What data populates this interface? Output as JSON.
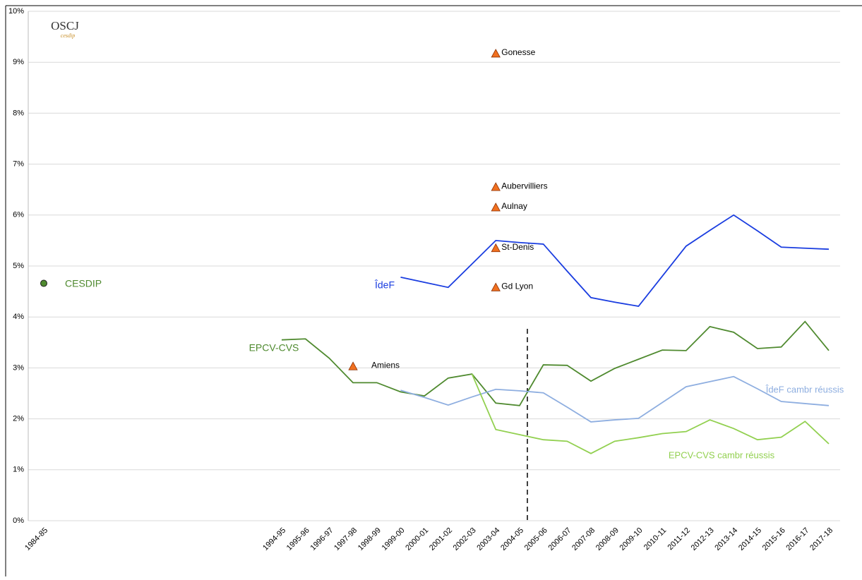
{
  "logo": {
    "title": "OSCJ",
    "subtitle": "cesdip"
  },
  "chart_data": {
    "type": "line",
    "categories": [
      "1984-85",
      null,
      null,
      null,
      null,
      null,
      null,
      null,
      null,
      null,
      "1994-95",
      "1995-96",
      "1996-97",
      "1997-98",
      "1998-99",
      "1999-00",
      "2000-01",
      "2001-02",
      "2002-03",
      "2003-04",
      "2004-05",
      "2005-06",
      "2006-07",
      "2007-08",
      "2008-09",
      "2009-10",
      "2010-11",
      "2011-12",
      "2012-13",
      "2013-14",
      "2014-15",
      "2015-16",
      "2016-17",
      "2017-18"
    ],
    "series": [
      {
        "name": "ÎdeF",
        "color": "#1a3de0",
        "values": [
          null,
          null,
          null,
          null,
          null,
          null,
          null,
          null,
          null,
          null,
          null,
          null,
          null,
          null,
          null,
          4.78,
          4.68,
          4.58,
          5.04,
          5.5,
          5.46,
          5.43,
          4.9,
          4.38,
          4.29,
          4.21,
          4.8,
          5.39,
          5.7,
          6.0,
          5.69,
          5.37,
          5.35,
          5.33
        ]
      },
      {
        "name": "EPCV-CVS",
        "color": "#4f8a2f",
        "values": [
          null,
          null,
          null,
          null,
          null,
          null,
          null,
          null,
          null,
          null,
          3.55,
          3.57,
          3.19,
          2.71,
          2.71,
          2.53,
          2.45,
          2.8,
          2.88,
          2.31,
          2.26,
          3.06,
          3.05,
          2.74,
          2.99,
          3.17,
          3.35,
          3.34,
          3.81,
          3.7,
          3.38,
          3.41,
          3.91,
          3.34
        ]
      },
      {
        "name": "ÎdeF cambr réussis",
        "color": "#8eaee0",
        "values": [
          null,
          null,
          null,
          null,
          null,
          null,
          null,
          null,
          null,
          null,
          null,
          null,
          null,
          null,
          null,
          2.56,
          2.42,
          2.27,
          2.43,
          2.58,
          2.55,
          2.51,
          2.23,
          1.94,
          1.98,
          2.01,
          2.32,
          2.63,
          2.73,
          2.83,
          2.59,
          2.34,
          2.3,
          2.26
        ]
      },
      {
        "name": "EPCV-CVS cambr réussis",
        "color": "#92d050",
        "values": [
          null,
          null,
          null,
          null,
          null,
          null,
          null,
          null,
          null,
          null,
          null,
          null,
          null,
          null,
          null,
          null,
          null,
          null,
          2.88,
          1.79,
          1.69,
          1.59,
          1.56,
          1.32,
          1.56,
          1.63,
          1.71,
          1.75,
          1.98,
          1.81,
          1.59,
          1.64,
          1.95,
          1.51
        ]
      }
    ],
    "points": [
      {
        "name": "CESDIP",
        "category": "1984-85",
        "value": 4.66,
        "marker": "circle",
        "color": "#4f8a2f"
      },
      {
        "name": "Gonesse",
        "category": "2003-04",
        "value": 9.17,
        "marker": "triangle",
        "color": "#f07020"
      },
      {
        "name": "Aubervilliers",
        "category": "2003-04",
        "value": 6.55,
        "marker": "triangle",
        "color": "#f07020"
      },
      {
        "name": "Aulnay",
        "category": "2003-04",
        "value": 6.15,
        "marker": "triangle",
        "color": "#f07020"
      },
      {
        "name": "St-Denis",
        "category": "2003-04",
        "value": 5.35,
        "marker": "triangle",
        "color": "#f07020"
      },
      {
        "name": "Gd Lyon",
        "category": "2003-04",
        "value": 4.58,
        "marker": "triangle",
        "color": "#f07020"
      },
      {
        "name": "Amiens",
        "category": "1997-98",
        "value": 3.03,
        "marker": "triangle",
        "color": "#f07020"
      }
    ],
    "ylim": [
      0,
      10
    ],
    "yticks": [
      {
        "value": 0,
        "label": "0%"
      },
      {
        "value": 1,
        "label": "1%"
      },
      {
        "value": 2,
        "label": "2%"
      },
      {
        "value": 3,
        "label": "3%"
      },
      {
        "value": 4,
        "label": "4%"
      },
      {
        "value": 5,
        "label": "5%"
      },
      {
        "value": 6,
        "label": "6%"
      },
      {
        "value": 7,
        "label": "7%"
      },
      {
        "value": 8,
        "label": "8%"
      },
      {
        "value": 9,
        "label": "9%"
      },
      {
        "value": 10,
        "label": "10%"
      }
    ],
    "grid": true
  }
}
